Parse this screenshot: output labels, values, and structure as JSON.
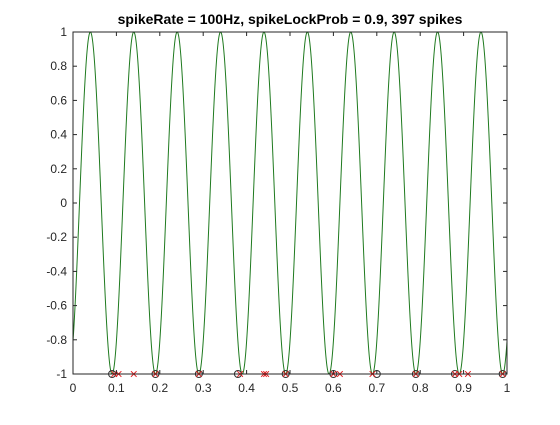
{
  "chart_data": {
    "type": "line",
    "title": "spikeRate = 100Hz, spikeLockProb = 0.9, 397 spikes",
    "xlim": [
      0,
      1
    ],
    "ylim": [
      -1,
      1
    ],
    "xticks": [
      "0",
      "0.1",
      "0.2",
      "0.3",
      "0.4",
      "0.5",
      "0.6",
      "0.7",
      "0.8",
      "0.9",
      "1"
    ],
    "yticks": [
      "-1",
      "-0.8",
      "-0.6",
      "-0.4",
      "-0.2",
      "0",
      "0.2",
      "0.4",
      "0.6",
      "0.8",
      "1"
    ],
    "grid": false,
    "series": [
      {
        "kind": "sinusoid",
        "color": "#1f7a1f",
        "frequency_hz": 10,
        "phase_min_at_x": [
          0.09,
          0.19,
          0.29,
          0.39,
          0.49,
          0.59,
          0.69,
          0.79,
          0.89,
          0.99
        ],
        "note_shape": "cos wave between -1 and 1"
      },
      {
        "kind": "markers",
        "marker": "o",
        "color": "#333333",
        "y": -1,
        "x": [
          0.09,
          0.19,
          0.29,
          0.38,
          0.49,
          0.6,
          0.7,
          0.79,
          0.88,
          0.99
        ]
      },
      {
        "kind": "markers",
        "marker": "x",
        "color": "#e31a1c",
        "y": -1,
        "x": [
          0.095,
          0.105,
          0.14,
          0.19,
          0.29,
          0.385,
          0.44,
          0.445,
          0.49,
          0.6,
          0.615,
          0.69,
          0.79,
          0.88,
          0.89,
          0.91,
          0.99
        ]
      }
    ]
  }
}
